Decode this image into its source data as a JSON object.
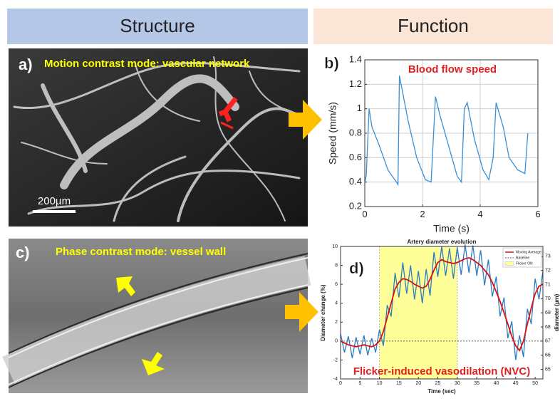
{
  "header": {
    "left": "Structure",
    "right": "Function"
  },
  "panels": {
    "a": {
      "label": "a)",
      "caption": "Motion contrast  mode: vascular network",
      "scale_bar": "200µm"
    },
    "c": {
      "label": "c)",
      "caption": "Phase contrast mode: vessel wall"
    }
  },
  "chart_data": [
    {
      "type": "line",
      "panel_label": "b)",
      "title": "Blood flow speed",
      "xlabel": "Time (s)",
      "ylabel": "Speed (mm/s)",
      "x": [
        0,
        0.05,
        0.15,
        0.25,
        0.5,
        0.8,
        1.1,
        1.15,
        1.2,
        1.3,
        1.5,
        1.8,
        2.1,
        2.3,
        2.45,
        2.6,
        2.9,
        3.2,
        3.35,
        3.45,
        3.55,
        3.8,
        4.1,
        4.3,
        4.45,
        4.55,
        4.8,
        5.0,
        5.3,
        5.55,
        5.65
      ],
      "values": [
        0.4,
        0.45,
        1.0,
        0.85,
        0.7,
        0.5,
        0.4,
        0.38,
        1.27,
        1.15,
        0.9,
        0.6,
        0.42,
        0.4,
        1.1,
        0.95,
        0.7,
        0.45,
        0.4,
        1.0,
        1.05,
        0.75,
        0.5,
        0.42,
        0.6,
        1.05,
        0.85,
        0.6,
        0.5,
        0.47,
        0.8
      ],
      "color": "#3a8fd6",
      "xlim": [
        0,
        6
      ],
      "xticks": [
        0,
        2,
        4,
        6
      ],
      "ylim": [
        0.2,
        1.4
      ],
      "yticks": [
        0.2,
        0.4,
        0.6,
        0.8,
        1,
        1.2,
        1.4
      ],
      "grid": true
    },
    {
      "type": "line",
      "panel_label": "d)",
      "title": "Artery diameter evolution",
      "xlabel": "Time (sec)",
      "ylabel": "Diameter change (%)",
      "y2label": "diameter (µm)",
      "annotation": "Flicker-induced vasodilation (NVC)",
      "x": [
        0,
        1,
        2,
        3,
        4,
        5,
        6,
        7,
        8,
        9,
        10,
        11,
        12,
        13,
        14,
        15,
        16,
        17,
        18,
        19,
        20,
        21,
        22,
        23,
        24,
        25,
        26,
        27,
        28,
        29,
        30,
        31,
        32,
        33,
        34,
        35,
        36,
        37,
        38,
        39,
        40,
        41,
        42,
        43,
        44,
        45,
        46,
        47,
        48,
        49,
        50,
        51,
        52
      ],
      "series": [
        {
          "color": "#2b7bc0",
          "values": [
            0.8,
            -1.2,
            0.5,
            -1.8,
            0.4,
            -1.4,
            0.6,
            -1.5,
            0.3,
            -1.2,
            1.2,
            -0.5,
            3.8,
            2.6,
            7.2,
            4.6,
            8.3,
            5.0,
            8.0,
            4.4,
            7.4,
            4.0,
            7.6,
            4.8,
            9.4,
            6.8,
            10.0,
            6.9,
            9.8,
            6.6,
            9.9,
            7.0,
            10.2,
            7.2,
            10.1,
            6.9,
            9.6,
            5.9,
            8.6,
            4.7,
            6.8,
            2.6,
            4.6,
            0.3,
            2.1,
            -2.0,
            0.6,
            -1.7,
            3.4,
            1.8,
            6.6,
            4.4,
            7.4
          ]
        },
        {
          "name": "Moving Average",
          "color": "#e01010",
          "values": [
            0,
            -0.2,
            -0.4,
            -0.5,
            -0.6,
            -0.5,
            -0.4,
            -0.5,
            -0.6,
            -0.4,
            0,
            1,
            2.5,
            4,
            5.5,
            6.2,
            6.6,
            6.5,
            6.3,
            6.0,
            5.8,
            5.6,
            5.8,
            6.5,
            7.5,
            8.3,
            8.6,
            8.4,
            8.3,
            8.2,
            8.3,
            8.5,
            8.7,
            8.8,
            8.6,
            8.3,
            8.0,
            7.5,
            7.0,
            6.2,
            5.2,
            4.2,
            3.0,
            1.8,
            0.5,
            -0.5,
            -1.0,
            0,
            1.8,
            3.5,
            5.0,
            5.8,
            6.0
          ]
        }
      ],
      "baseline": {
        "name": "Baseline",
        "value": 0
      },
      "highlight": {
        "name": "Flicker ON",
        "x": [
          10,
          30
        ],
        "color": "#ffff99"
      },
      "xlim": [
        0,
        52
      ],
      "xticks": [
        0,
        5,
        10,
        15,
        20,
        25,
        30,
        35,
        40,
        45,
        50
      ],
      "ylim": [
        -4,
        10
      ],
      "yticks": [
        -4,
        -2,
        0,
        2,
        4,
        6,
        8,
        10
      ],
      "y2lim": [
        64.32,
        73.7
      ],
      "y2ticks": [
        65,
        66,
        67,
        68,
        69,
        70,
        71,
        72,
        73
      ],
      "grid": false
    }
  ]
}
